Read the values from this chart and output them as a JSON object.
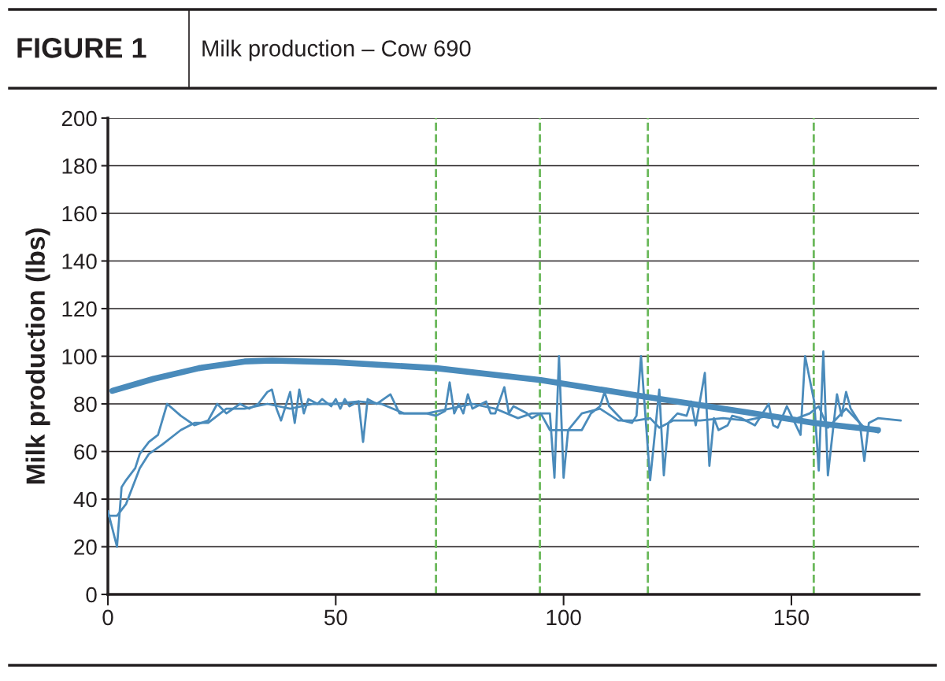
{
  "chart_data": {
    "type": "line",
    "title": "FIGURE 1",
    "subtitle": "Milk production – Cow 690",
    "ylabel": "Milk production (lbs)",
    "xlim": [
      0,
      178
    ],
    "xticks": [
      0,
      50,
      100,
      150
    ],
    "ylim": [
      0,
      200
    ],
    "yticks": [
      0,
      20,
      40,
      60,
      80,
      100,
      120,
      140,
      160,
      180,
      200
    ],
    "grid": "y",
    "marker": "none",
    "line_style": "solid",
    "series": [
      {
        "color": "#4a8bbb",
        "x": [
          0,
          2,
          3,
          4,
          6,
          7,
          9,
          11,
          13,
          16,
          19,
          22,
          24,
          26,
          29,
          31,
          33,
          35,
          36,
          37,
          38,
          40,
          41,
          42,
          43,
          44,
          46,
          47,
          49,
          50,
          51,
          52,
          53,
          55,
          56,
          57,
          59,
          62,
          64,
          70,
          72,
          74,
          75,
          76,
          77,
          78,
          79,
          80,
          83,
          84,
          85,
          87,
          88,
          89,
          92,
          93,
          95,
          97,
          98,
          99,
          100,
          101,
          104,
          106,
          108,
          109,
          110,
          113,
          115,
          116,
          117,
          119,
          121,
          122,
          123,
          124,
          125,
          127,
          128,
          129,
          131,
          132,
          133,
          134,
          136,
          137,
          139,
          142,
          145,
          146,
          147,
          149,
          152,
          153,
          155,
          156,
          157,
          158,
          160,
          161,
          162,
          163,
          165,
          166,
          167,
          169,
          174
        ],
        "values": [
          35,
          20,
          45,
          48,
          53,
          59,
          64,
          67,
          80,
          75,
          71,
          73,
          80,
          76,
          80,
          78,
          80,
          85,
          86,
          78,
          73,
          85,
          72,
          86,
          76,
          82,
          80,
          82,
          79,
          82,
          78,
          82,
          79,
          81,
          64,
          82,
          80,
          84,
          76,
          76,
          75,
          77,
          89,
          76,
          80,
          76,
          84,
          78,
          81,
          76,
          76,
          87,
          76,
          79,
          76,
          74,
          76,
          76,
          49,
          100,
          49,
          69,
          69,
          76,
          79,
          85,
          79,
          73,
          72,
          75,
          100,
          48,
          86,
          50,
          72,
          74,
          76,
          75,
          81,
          71,
          93,
          54,
          74,
          69,
          71,
          75,
          74,
          71,
          80,
          71,
          70,
          79,
          67,
          100,
          81,
          52,
          102,
          50,
          84,
          75,
          85,
          78,
          72,
          56,
          72,
          74,
          73
        ]
      },
      {
        "color": "#4a8bbb",
        "x": [
          0,
          2,
          4,
          7,
          9,
          12,
          16,
          19,
          22,
          26,
          30,
          35,
          40,
          45,
          50,
          55,
          60,
          65,
          70,
          75,
          80,
          85,
          90,
          93,
          95,
          97,
          101,
          104,
          108,
          112,
          116,
          119,
          121,
          124,
          130,
          135,
          140,
          145,
          150,
          154,
          156,
          158,
          162,
          166,
          169
        ],
        "values": [
          33,
          33,
          38,
          53,
          59,
          63,
          69,
          72,
          72,
          78,
          78,
          80,
          78,
          80,
          80,
          81,
          80,
          76,
          76,
          78,
          80,
          78,
          74,
          76,
          76,
          69,
          69,
          76,
          78,
          73,
          73,
          74,
          70,
          73,
          73,
          74,
          73,
          75,
          73,
          76,
          79,
          70,
          78,
          70,
          68
        ]
      },
      {
        "color": "#4a8bbb",
        "x": [
          1,
          10,
          20,
          30,
          36,
          50,
          72,
          95,
          118,
          140,
          155,
          169
        ],
        "values": [
          85.5,
          90.5,
          95,
          97.8,
          98.2,
          97.5,
          95,
          90,
          83,
          76.5,
          72,
          69
        ]
      }
    ],
    "ref_lines": [
      {
        "axis": "x",
        "value": 72,
        "color": "#6ab85a",
        "line_style": "dashed"
      },
      {
        "axis": "x",
        "value": 94.8,
        "color": "#6ab85a",
        "line_style": "dashed"
      },
      {
        "axis": "x",
        "value": 118.5,
        "color": "#6ab85a",
        "line_style": "dashed"
      },
      {
        "axis": "x",
        "value": 154.9,
        "color": "#6ab85a",
        "line_style": "dashed"
      }
    ]
  }
}
